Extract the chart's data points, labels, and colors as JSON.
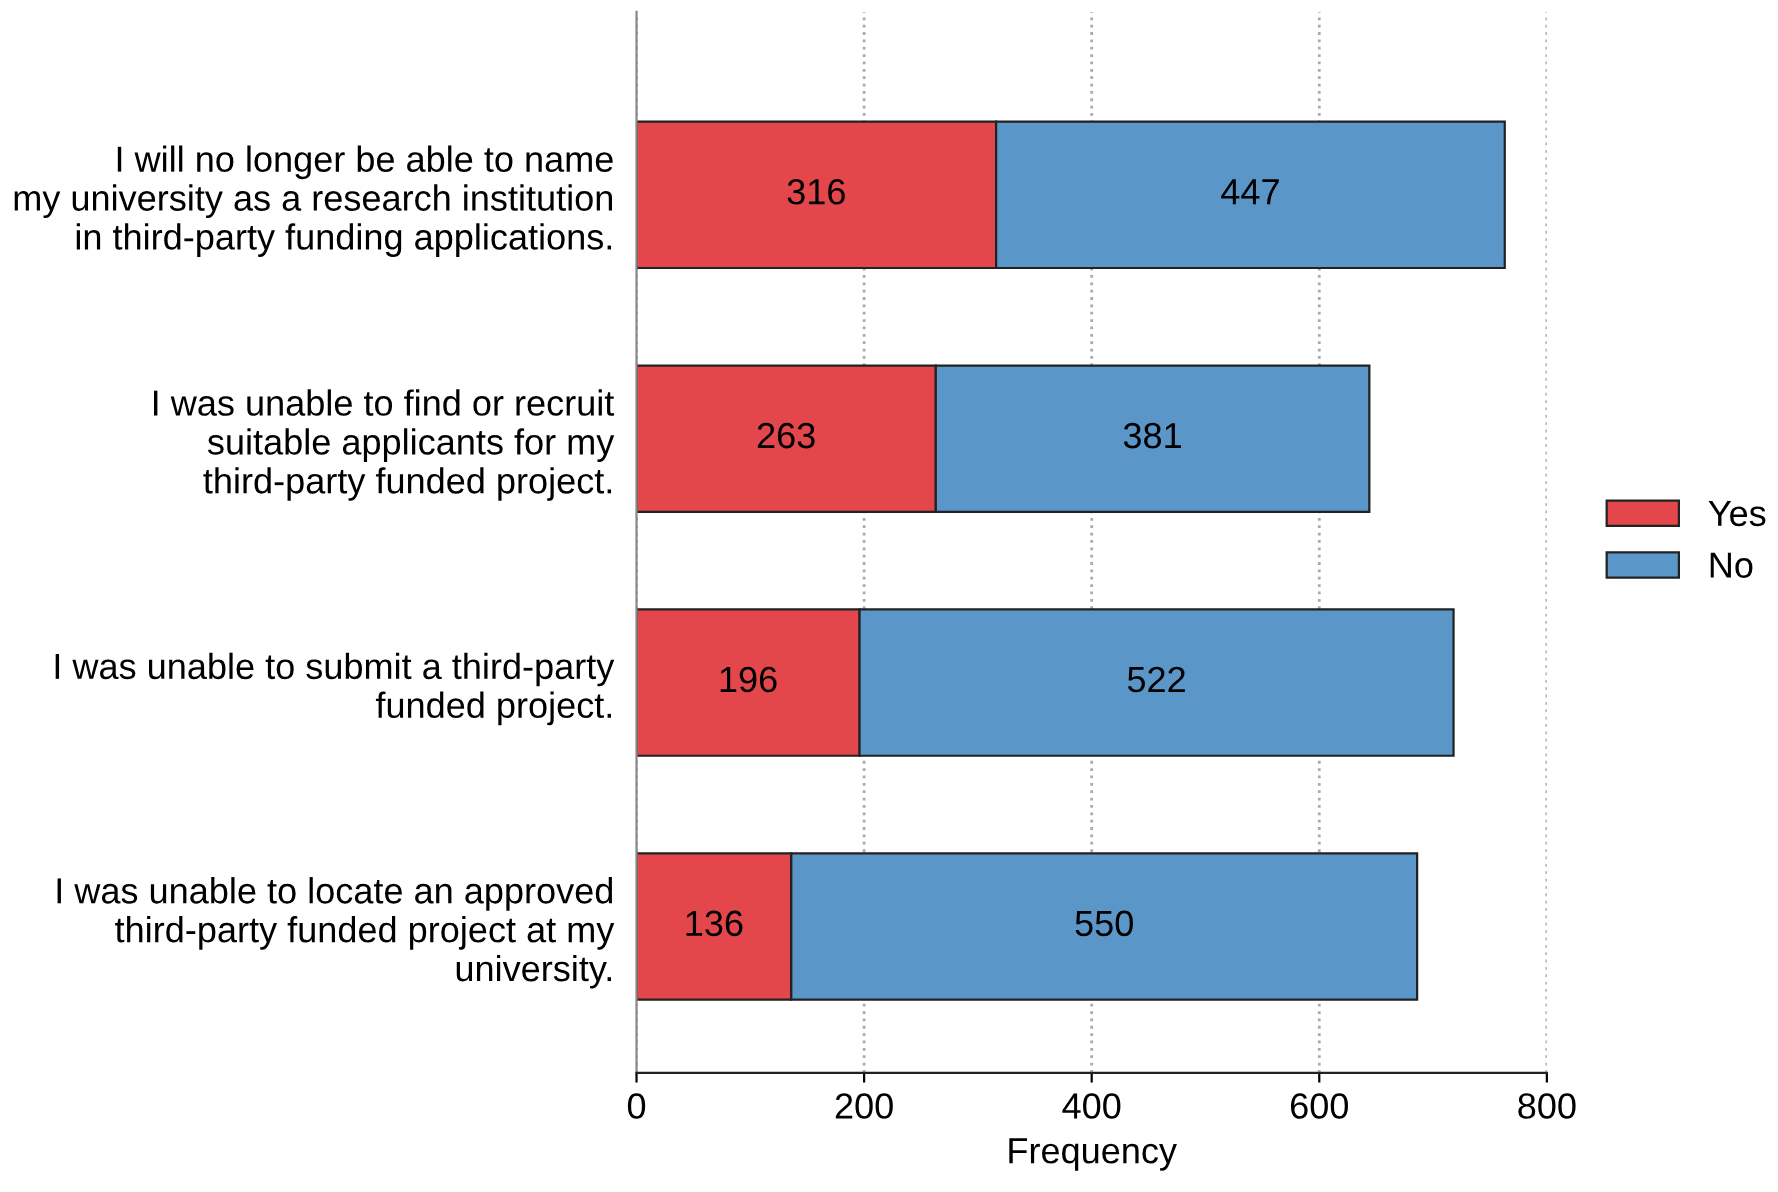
{
  "chart_data": {
    "type": "bar",
    "orientation": "horizontal",
    "stacked": true,
    "categories": [
      "I will no longer be able to name\nmy university as a research institution\nin third-party funding applications.",
      "I was unable to find or recruit\nsuitable applicants for my\nthird-party funded project.",
      "I was unable to submit a third-party\nfunded project.",
      "I was unable to locate an approved\nthird-party funded project at my\nuniversity."
    ],
    "series": [
      {
        "name": "Yes",
        "color": "#e3474b",
        "values": [
          316,
          263,
          196,
          136
        ]
      },
      {
        "name": "No",
        "color": "#5a96c8",
        "values": [
          447,
          381,
          522,
          550
        ]
      }
    ],
    "xlabel": "Frequency",
    "xlim": [
      0,
      800
    ],
    "xticks": [
      0,
      200,
      400,
      600,
      800
    ],
    "grid": "x",
    "legend": "right",
    "data_labels": true
  }
}
